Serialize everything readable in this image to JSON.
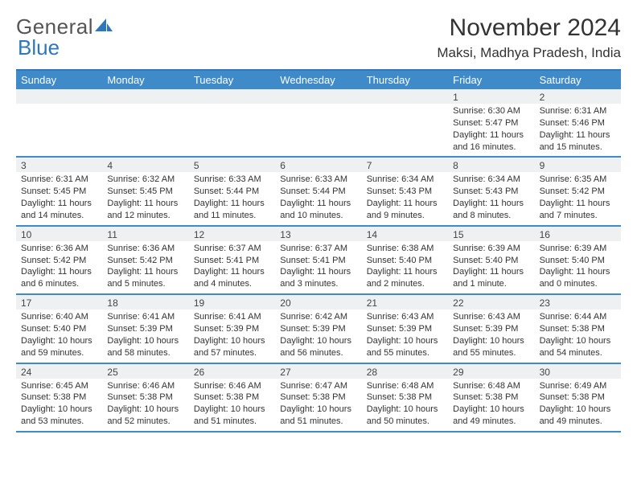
{
  "brand": {
    "part1": "General",
    "part2": "Blue"
  },
  "title": "November 2024",
  "location": "Maksi, Madhya Pradesh, India",
  "colors": {
    "header_bg": "#3f8ac9",
    "header_text": "#ffffff",
    "rule": "#2f77bb",
    "daynum_bg": "#eef0f2",
    "text": "#333333",
    "page_bg": "#ffffff"
  },
  "day_names": [
    "Sunday",
    "Monday",
    "Tuesday",
    "Wednesday",
    "Thursday",
    "Friday",
    "Saturday"
  ],
  "weeks": [
    [
      {
        "n": "",
        "sr": "",
        "ss": "",
        "dl": ""
      },
      {
        "n": "",
        "sr": "",
        "ss": "",
        "dl": ""
      },
      {
        "n": "",
        "sr": "",
        "ss": "",
        "dl": ""
      },
      {
        "n": "",
        "sr": "",
        "ss": "",
        "dl": ""
      },
      {
        "n": "",
        "sr": "",
        "ss": "",
        "dl": ""
      },
      {
        "n": "1",
        "sr": "Sunrise: 6:30 AM",
        "ss": "Sunset: 5:47 PM",
        "dl": "Daylight: 11 hours and 16 minutes."
      },
      {
        "n": "2",
        "sr": "Sunrise: 6:31 AM",
        "ss": "Sunset: 5:46 PM",
        "dl": "Daylight: 11 hours and 15 minutes."
      }
    ],
    [
      {
        "n": "3",
        "sr": "Sunrise: 6:31 AM",
        "ss": "Sunset: 5:45 PM",
        "dl": "Daylight: 11 hours and 14 minutes."
      },
      {
        "n": "4",
        "sr": "Sunrise: 6:32 AM",
        "ss": "Sunset: 5:45 PM",
        "dl": "Daylight: 11 hours and 12 minutes."
      },
      {
        "n": "5",
        "sr": "Sunrise: 6:33 AM",
        "ss": "Sunset: 5:44 PM",
        "dl": "Daylight: 11 hours and 11 minutes."
      },
      {
        "n": "6",
        "sr": "Sunrise: 6:33 AM",
        "ss": "Sunset: 5:44 PM",
        "dl": "Daylight: 11 hours and 10 minutes."
      },
      {
        "n": "7",
        "sr": "Sunrise: 6:34 AM",
        "ss": "Sunset: 5:43 PM",
        "dl": "Daylight: 11 hours and 9 minutes."
      },
      {
        "n": "8",
        "sr": "Sunrise: 6:34 AM",
        "ss": "Sunset: 5:43 PM",
        "dl": "Daylight: 11 hours and 8 minutes."
      },
      {
        "n": "9",
        "sr": "Sunrise: 6:35 AM",
        "ss": "Sunset: 5:42 PM",
        "dl": "Daylight: 11 hours and 7 minutes."
      }
    ],
    [
      {
        "n": "10",
        "sr": "Sunrise: 6:36 AM",
        "ss": "Sunset: 5:42 PM",
        "dl": "Daylight: 11 hours and 6 minutes."
      },
      {
        "n": "11",
        "sr": "Sunrise: 6:36 AM",
        "ss": "Sunset: 5:42 PM",
        "dl": "Daylight: 11 hours and 5 minutes."
      },
      {
        "n": "12",
        "sr": "Sunrise: 6:37 AM",
        "ss": "Sunset: 5:41 PM",
        "dl": "Daylight: 11 hours and 4 minutes."
      },
      {
        "n": "13",
        "sr": "Sunrise: 6:37 AM",
        "ss": "Sunset: 5:41 PM",
        "dl": "Daylight: 11 hours and 3 minutes."
      },
      {
        "n": "14",
        "sr": "Sunrise: 6:38 AM",
        "ss": "Sunset: 5:40 PM",
        "dl": "Daylight: 11 hours and 2 minutes."
      },
      {
        "n": "15",
        "sr": "Sunrise: 6:39 AM",
        "ss": "Sunset: 5:40 PM",
        "dl": "Daylight: 11 hours and 1 minute."
      },
      {
        "n": "16",
        "sr": "Sunrise: 6:39 AM",
        "ss": "Sunset: 5:40 PM",
        "dl": "Daylight: 11 hours and 0 minutes."
      }
    ],
    [
      {
        "n": "17",
        "sr": "Sunrise: 6:40 AM",
        "ss": "Sunset: 5:40 PM",
        "dl": "Daylight: 10 hours and 59 minutes."
      },
      {
        "n": "18",
        "sr": "Sunrise: 6:41 AM",
        "ss": "Sunset: 5:39 PM",
        "dl": "Daylight: 10 hours and 58 minutes."
      },
      {
        "n": "19",
        "sr": "Sunrise: 6:41 AM",
        "ss": "Sunset: 5:39 PM",
        "dl": "Daylight: 10 hours and 57 minutes."
      },
      {
        "n": "20",
        "sr": "Sunrise: 6:42 AM",
        "ss": "Sunset: 5:39 PM",
        "dl": "Daylight: 10 hours and 56 minutes."
      },
      {
        "n": "21",
        "sr": "Sunrise: 6:43 AM",
        "ss": "Sunset: 5:39 PM",
        "dl": "Daylight: 10 hours and 55 minutes."
      },
      {
        "n": "22",
        "sr": "Sunrise: 6:43 AM",
        "ss": "Sunset: 5:39 PM",
        "dl": "Daylight: 10 hours and 55 minutes."
      },
      {
        "n": "23",
        "sr": "Sunrise: 6:44 AM",
        "ss": "Sunset: 5:38 PM",
        "dl": "Daylight: 10 hours and 54 minutes."
      }
    ],
    [
      {
        "n": "24",
        "sr": "Sunrise: 6:45 AM",
        "ss": "Sunset: 5:38 PM",
        "dl": "Daylight: 10 hours and 53 minutes."
      },
      {
        "n": "25",
        "sr": "Sunrise: 6:46 AM",
        "ss": "Sunset: 5:38 PM",
        "dl": "Daylight: 10 hours and 52 minutes."
      },
      {
        "n": "26",
        "sr": "Sunrise: 6:46 AM",
        "ss": "Sunset: 5:38 PM",
        "dl": "Daylight: 10 hours and 51 minutes."
      },
      {
        "n": "27",
        "sr": "Sunrise: 6:47 AM",
        "ss": "Sunset: 5:38 PM",
        "dl": "Daylight: 10 hours and 51 minutes."
      },
      {
        "n": "28",
        "sr": "Sunrise: 6:48 AM",
        "ss": "Sunset: 5:38 PM",
        "dl": "Daylight: 10 hours and 50 minutes."
      },
      {
        "n": "29",
        "sr": "Sunrise: 6:48 AM",
        "ss": "Sunset: 5:38 PM",
        "dl": "Daylight: 10 hours and 49 minutes."
      },
      {
        "n": "30",
        "sr": "Sunrise: 6:49 AM",
        "ss": "Sunset: 5:38 PM",
        "dl": "Daylight: 10 hours and 49 minutes."
      }
    ]
  ]
}
